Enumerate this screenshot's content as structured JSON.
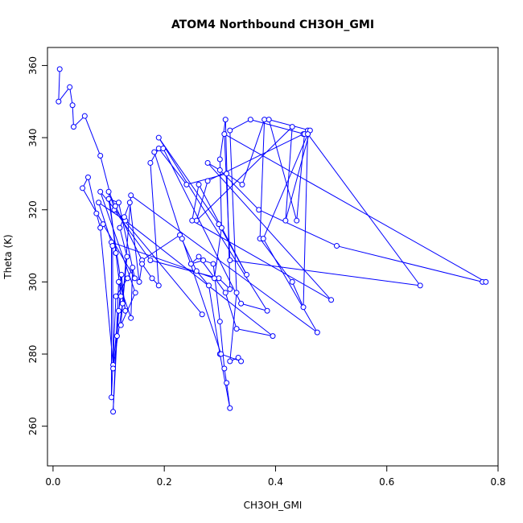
{
  "chart_data": {
    "type": "line",
    "title": "ATOM4 Northbound CH3OH_GMI",
    "xlabel": "CH3OH_GMI",
    "ylabel": "Theta (K)",
    "xlim": [
      -0.01,
      0.8
    ],
    "ylim": [
      249,
      365
    ],
    "xticks": [
      0.0,
      0.2,
      0.4,
      0.6,
      0.8
    ],
    "xtick_labels": [
      "0.0",
      "0.2",
      "0.4",
      "0.6",
      "0.8"
    ],
    "yticks": [
      260,
      280,
      300,
      320,
      340,
      360
    ],
    "yticks_labels": [
      "260",
      "280",
      "300",
      "320",
      "340",
      "360"
    ],
    "grid": false,
    "marker": "open-circle",
    "colors": {
      "series": "#0000ff",
      "axis": "#000000",
      "background": "#ffffff"
    },
    "series": [
      {
        "points": [
          [
            0.012,
            359
          ],
          [
            0.01,
            350
          ],
          [
            0.03,
            354
          ],
          [
            0.035,
            349
          ],
          [
            0.037,
            343
          ],
          [
            0.057,
            346
          ],
          [
            0.085,
            335
          ],
          [
            0.11,
            320
          ],
          [
            0.175,
            306
          ],
          [
            0.298,
            301
          ],
          [
            0.318,
            298
          ],
          [
            0.31,
            345
          ],
          [
            0.3,
            334
          ],
          [
            0.303,
            315
          ],
          [
            0.29,
            301
          ],
          [
            0.105,
            311
          ],
          [
            0.105,
            268
          ],
          [
            0.113,
            296
          ],
          [
            0.134,
            301
          ],
          [
            0.143,
            304
          ],
          [
            0.14,
            290
          ],
          [
            0.118,
            300
          ],
          [
            0.108,
            264
          ],
          [
            0.115,
            285
          ],
          [
            0.123,
            302
          ],
          [
            0.13,
            292
          ],
          [
            0.1,
            323
          ],
          [
            0.118,
            322
          ],
          [
            0.147,
            301
          ],
          [
            0.09,
            316
          ],
          [
            0.053,
            326
          ],
          [
            0.063,
            329
          ],
          [
            0.078,
            319
          ],
          [
            0.085,
            315
          ],
          [
            0.108,
            277
          ],
          [
            0.118,
            292
          ],
          [
            0.122,
            296
          ],
          [
            0.113,
            308
          ],
          [
            0.1,
            325
          ],
          [
            0.112,
            321
          ],
          [
            0.16,
            306
          ],
          [
            0.228,
            313
          ],
          [
            0.258,
            303
          ],
          [
            0.28,
            299
          ],
          [
            0.3,
            280
          ],
          [
            0.318,
            265
          ],
          [
            0.312,
            272
          ],
          [
            0.308,
            276
          ],
          [
            0.3,
            289
          ],
          [
            0.288,
            305
          ],
          [
            0.27,
            306
          ],
          [
            0.248,
            305
          ],
          [
            0.262,
            307
          ],
          [
            0.31,
            297
          ],
          [
            0.33,
            287
          ],
          [
            0.395,
            285
          ],
          [
            0.13,
            317
          ],
          [
            0.082,
            322
          ],
          [
            0.107,
            310
          ],
          [
            0.108,
            276
          ],
          [
            0.125,
            294
          ],
          [
            0.133,
            307
          ],
          [
            0.12,
            315
          ],
          [
            0.128,
            318
          ],
          [
            0.138,
            322
          ],
          [
            0.155,
            300
          ],
          [
            0.16,
            305
          ],
          [
            0.178,
            301
          ],
          [
            0.19,
            299
          ],
          [
            0.175,
            333
          ],
          [
            0.19,
            337
          ],
          [
            0.24,
            327
          ],
          [
            0.312,
            330
          ],
          [
            0.34,
            327
          ],
          [
            0.38,
            345
          ],
          [
            0.372,
            312
          ],
          [
            0.43,
            300
          ],
          [
            0.45,
            293
          ],
          [
            0.458,
            342
          ],
          [
            0.45,
            341
          ],
          [
            0.278,
            328
          ],
          [
            0.258,
            317
          ],
          [
            0.43,
            343
          ],
          [
            0.418,
            317
          ],
          [
            0.462,
            342
          ],
          [
            0.388,
            345
          ],
          [
            0.438,
            317
          ],
          [
            0.452,
            341
          ],
          [
            0.355,
            345
          ],
          [
            0.318,
            342
          ],
          [
            0.33,
            297
          ],
          [
            0.318,
            278
          ],
          [
            0.333,
            279
          ],
          [
            0.338,
            278
          ],
          [
            0.302,
            280
          ],
          [
            0.232,
            312
          ],
          [
            0.182,
            336
          ],
          [
            0.198,
            337
          ],
          [
            0.338,
            294
          ],
          [
            0.385,
            292
          ],
          [
            0.19,
            340
          ],
          [
            0.298,
            316
          ],
          [
            0.348,
            302
          ],
          [
            0.262,
            327
          ],
          [
            0.25,
            317
          ],
          [
            0.5,
            295
          ],
          [
            0.278,
            333
          ],
          [
            0.3,
            331
          ],
          [
            0.37,
            320
          ],
          [
            0.51,
            310
          ],
          [
            0.772,
            300
          ],
          [
            0.778,
            300
          ],
          [
            0.308,
            341
          ],
          [
            0.318,
            306
          ],
          [
            0.66,
            299
          ],
          [
            0.458,
            341
          ],
          [
            0.378,
            312
          ],
          [
            0.475,
            286
          ],
          [
            0.14,
            324
          ],
          [
            0.122,
            288
          ],
          [
            0.148,
            297
          ],
          [
            0.085,
            325
          ],
          [
            0.268,
            291
          ]
        ]
      }
    ]
  }
}
